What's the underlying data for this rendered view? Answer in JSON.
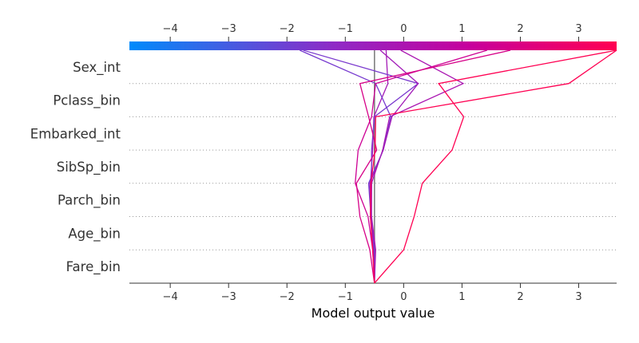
{
  "chart_data": {
    "type": "line",
    "subtype": "shap-decision-plot",
    "xlabel": "Model output value",
    "xlim": [
      -4.7,
      3.65
    ],
    "xticks": [
      -4,
      -3,
      -2,
      -1,
      0,
      1,
      2,
      3
    ],
    "tick_labels": [
      "−4",
      "−3",
      "−2",
      "−1",
      "0",
      "1",
      "2",
      "3"
    ],
    "base_value": -0.5,
    "features": [
      "Sex_int",
      "Pclass_bin",
      "Embarked_int",
      "SibSp_bin",
      "Parch_bin",
      "Age_bin",
      "Fare_bin"
    ],
    "colorbar": {
      "range": [
        -4.7,
        3.65
      ],
      "colors": [
        "#008bfb",
        "#8f2ac6",
        "#c7009c",
        "#ff0052"
      ]
    },
    "grid": "dotted horizontal lines between features",
    "series": [
      {
        "values": [
          -0.5,
          -0.51,
          -0.57,
          -0.57,
          -0.53,
          -0.51,
          -0.27,
          -0.3
        ]
      },
      {
        "values": [
          -0.5,
          -0.49,
          -0.56,
          -0.55,
          -0.55,
          -0.5,
          0.25,
          -1.72
        ]
      },
      {
        "values": [
          -0.5,
          -0.48,
          -0.55,
          -0.55,
          -0.36,
          -0.24,
          1.02,
          -0.05
        ]
      },
      {
        "values": [
          -0.5,
          -0.51,
          -0.56,
          -0.6,
          -0.35,
          -0.22,
          -0.48,
          -1.78
        ]
      },
      {
        "values": [
          -0.5,
          -0.52,
          -0.56,
          -0.58,
          -0.35,
          -0.2,
          0.25,
          -0.4
        ]
      },
      {
        "values": [
          -0.5,
          -0.53,
          -0.61,
          -0.83,
          -0.78,
          -0.55,
          -0.48,
          1.43
        ]
      },
      {
        "values": [
          -0.5,
          -0.58,
          -0.75,
          -0.81,
          -0.46,
          -0.6,
          -0.75,
          1.83
        ]
      },
      {
        "values": [
          -0.5,
          0.0,
          0.18,
          0.32,
          0.83,
          1.03,
          0.6,
          3.65
        ]
      },
      {
        "values": [
          -0.5,
          -0.53,
          -0.57,
          -0.56,
          -0.49,
          -0.48,
          2.83,
          3.65
        ]
      }
    ]
  }
}
